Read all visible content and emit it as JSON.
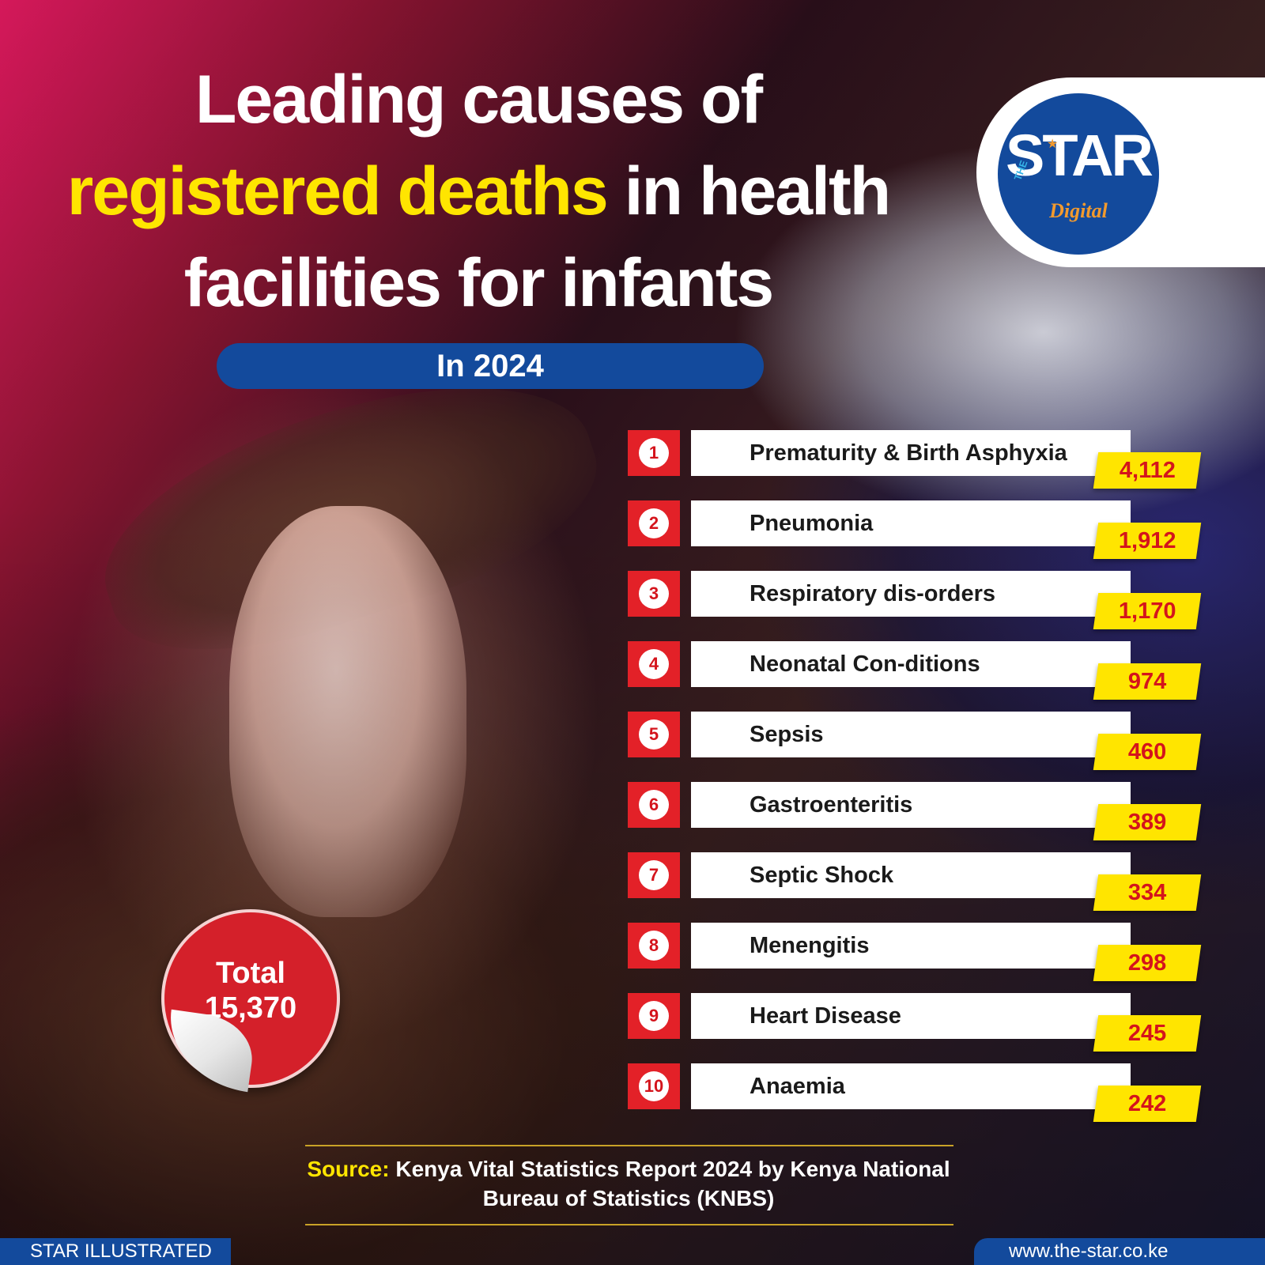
{
  "title": {
    "line1": "Leading causes of",
    "line2_highlight": "registered deaths",
    "line2_rest": " in health",
    "line3": "facilities for infants"
  },
  "subtitle": "In 2024",
  "logo": {
    "the": "THE",
    "word": "STAR",
    "digital": "Digital"
  },
  "chart_data": {
    "type": "bar",
    "title": "Leading causes of registered deaths in health facilities for infants",
    "subtitle": "In 2024",
    "categories": [
      "Prematurity & Birth Asphyxia",
      "Pneumonia",
      "Respiratory dis-orders",
      "Neonatal Con-ditions",
      "Sepsis",
      "Gastroenteritis",
      "Septic Shock",
      "Menengitis",
      "Heart Disease",
      "Anaemia"
    ],
    "ranks": [
      "1",
      "2",
      "3",
      "4",
      "5",
      "6",
      "7",
      "8",
      "9",
      "10"
    ],
    "values": [
      4112,
      1912,
      1170,
      974,
      460,
      389,
      334,
      298,
      245,
      242
    ],
    "value_labels": [
      "4,112",
      "1,912",
      "1,170",
      "974",
      "460",
      "389",
      "334",
      "298",
      "245",
      "242"
    ]
  },
  "total": {
    "label": "Total",
    "value": "15,370"
  },
  "source": {
    "label": "Source:",
    "text": " Kenya Vital Statistics Report 2024 by Kenya National Bureau of Statistics (KNBS)"
  },
  "footer": {
    "left": "STAR ILLUSTRATED",
    "right": "www.the-star.co.ke"
  },
  "colors": {
    "accent_red": "#e32128",
    "accent_yellow": "#ffe500",
    "brand_blue": "#134a9c"
  }
}
